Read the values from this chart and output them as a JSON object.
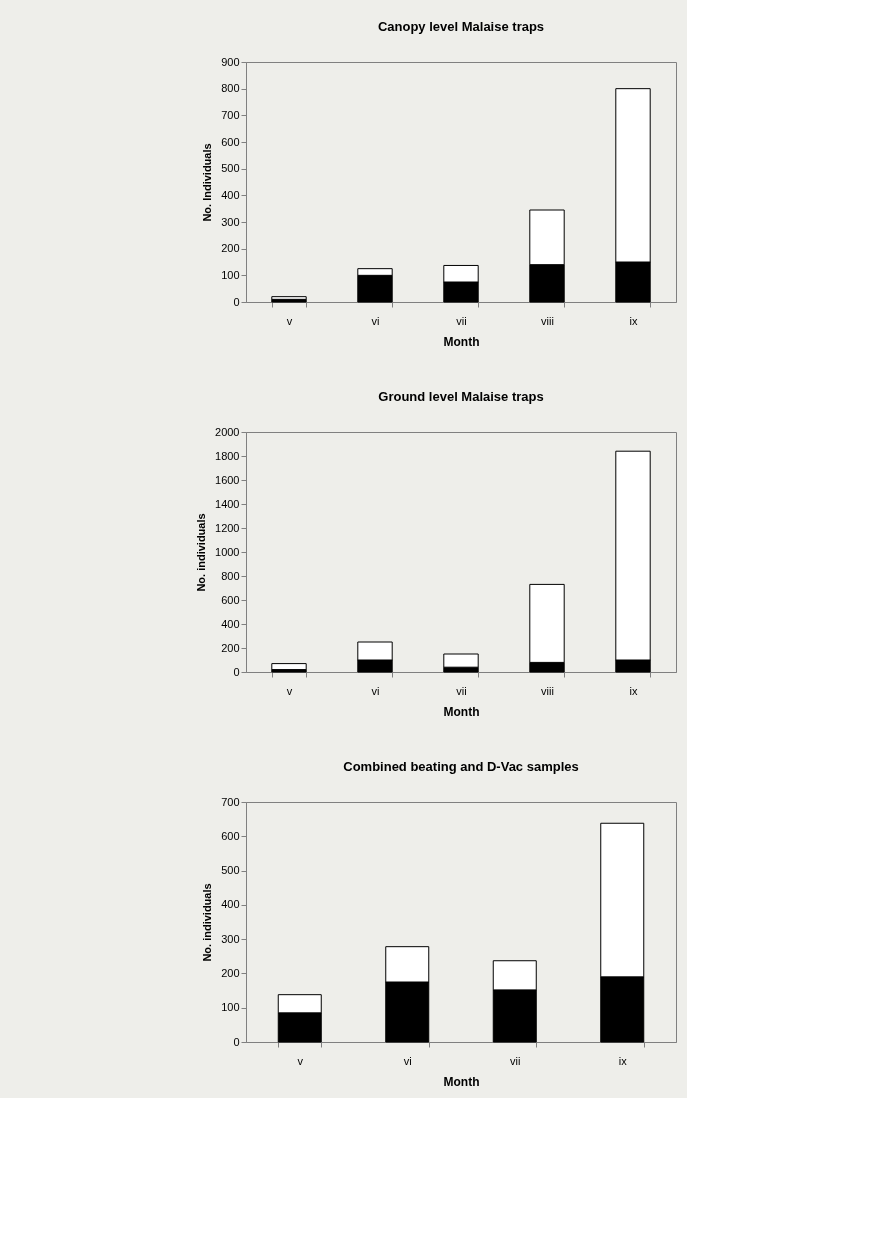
{
  "chart_data": [
    {
      "type": "bar",
      "title": "Canopy level Malaise traps",
      "xlabel": "Month",
      "ylabel": "No. Individuals",
      "categories": [
        "v",
        "vi",
        "vii",
        "viii",
        "ix"
      ],
      "stacked": true,
      "ylim": [
        0,
        900
      ],
      "yticks": [
        0,
        100,
        200,
        300,
        400,
        500,
        600,
        700,
        800,
        900
      ],
      "grid": false,
      "legend": false,
      "series": [
        {
          "color": "#000000",
          "values": [
            10,
            100,
            75,
            140,
            150
          ]
        },
        {
          "color": "#ffffff",
          "values": [
            10,
            25,
            62,
            205,
            650
          ]
        }
      ]
    },
    {
      "type": "bar",
      "title": "Ground level Malaise traps",
      "xlabel": "Month",
      "ylabel": "No. individuals",
      "categories": [
        "v",
        "vi",
        "vii",
        "viii",
        "ix"
      ],
      "stacked": true,
      "ylim": [
        0,
        2000
      ],
      "yticks": [
        0,
        200,
        400,
        600,
        800,
        1000,
        1200,
        1400,
        1600,
        1800,
        2000
      ],
      "grid": false,
      "legend": false,
      "series": [
        {
          "color": "#000000",
          "values": [
            20,
            100,
            40,
            80,
            100
          ]
        },
        {
          "color": "#ffffff",
          "values": [
            50,
            150,
            110,
            650,
            1740
          ]
        }
      ]
    },
    {
      "type": "bar",
      "title": "Combined beating and D-Vac samples",
      "xlabel": "Month",
      "ylabel": "No. individuals",
      "categories": [
        "v",
        "vi",
        "vii",
        "ix"
      ],
      "stacked": true,
      "ylim": [
        0,
        700
      ],
      "yticks": [
        0,
        100,
        200,
        300,
        400,
        500,
        600,
        700
      ],
      "grid": false,
      "legend": false,
      "series": [
        {
          "color": "#000000",
          "values": [
            85,
            175,
            152,
            190
          ]
        },
        {
          "color": "#ffffff",
          "values": [
            53,
            103,
            85,
            448
          ]
        }
      ]
    }
  ]
}
